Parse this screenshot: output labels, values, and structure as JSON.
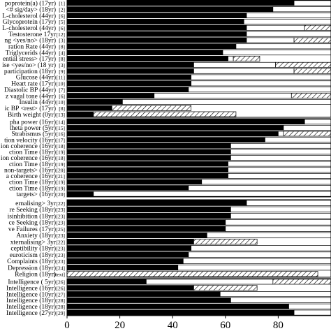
{
  "chart_data": {
    "type": "bar",
    "orientation": "horizontal",
    "stacked": true,
    "title": "",
    "xlabel": "",
    "ylabel": "",
    "xlim": [
      0,
      100
    ],
    "xticks": [
      0,
      20,
      40,
      60,
      80
    ],
    "grid": false,
    "legend": "none",
    "segment_styles": [
      "solid-black",
      "white",
      "hatched"
    ],
    "panels": [
      {
        "rows": [
          {
            "label": "poprotein(a) (17yr)",
            "num": "[1]",
            "values": [
              86,
              14,
              0
            ]
          },
          {
            "label": "<# sig/day> (18yr)",
            "num": "[2]",
            "values": [
              78,
              22,
              0
            ]
          },
          {
            "label": "L-cholesterol (44yr)",
            "num": "[6]",
            "values": [
              68,
              32,
              0
            ]
          },
          {
            "label": "Glycoprotein (17yr)",
            "num": "[5]",
            "values": [
              67,
              33,
              0
            ]
          },
          {
            "label": "L-cholesterol (44yr)",
            "num": "[6]",
            "values": [
              68,
              22,
              10
            ]
          },
          {
            "label": "Testosterone 17yr",
            "num": "[12]",
            "values": [
              68,
              32,
              0
            ]
          },
          {
            "label": "ng <yes/no> (18yr)",
            "num": "[3]",
            "values": [
              68,
              18,
              14
            ]
          },
          {
            "label": "ration Rate (44yr)",
            "num": "[8]",
            "values": [
              64,
              36,
              0
            ]
          },
          {
            "label": "Triglycerids (44yr)",
            "num": "[4]",
            "values": [
              59,
              41,
              0
            ]
          },
          {
            "label": "ential stress> (17yr)",
            "num": "[8]",
            "values": [
              61,
              2,
              10
            ]
          },
          {
            "label": "ise <yes/no> (18 yr)",
            "num": "[3]",
            "values": [
              48,
              31,
              21
            ]
          },
          {
            "label": "participation (18yr)",
            "num": "[9]",
            "values": [
              48,
              38,
              14
            ]
          },
          {
            "label": "Glucose (44yr)",
            "num": "[11]",
            "values": [
              47,
              53,
              0
            ]
          },
          {
            "label": "Heart rate (17yr)",
            "num": "[10]",
            "values": [
              47,
              53,
              0
            ]
          },
          {
            "label": "Diastolic BP (44yr)",
            "num": "[7]",
            "values": [
              46,
              54,
              0
            ]
          },
          {
            "label": "z vagal tone (44yr)",
            "num": "[6]",
            "values": [
              33,
              52,
              15
            ]
          },
          {
            "label": "Insulin (44yr)",
            "num": "[10]",
            "values": [
              21,
              79,
              0
            ]
          },
          {
            "label": "ic BP <rest> (17yr)",
            "num": "[8]",
            "values": [
              17,
              0,
              30
            ]
          },
          {
            "label": "Birth weight (0yr)",
            "num": "[13]",
            "values": [
              10,
              0,
              54
            ]
          }
        ]
      },
      {
        "rows": [
          {
            "label": "pha power (16yr)",
            "num": "[14]",
            "values": [
              90,
              10,
              0
            ]
          },
          {
            "label": "theta power (5yr)",
            "num": "[15]",
            "values": [
              82,
              18,
              0
            ]
          },
          {
            "label": "Strabismus (5yr)",
            "num": "[16]",
            "values": [
              80,
              2,
              18
            ]
          },
          {
            "label": "tion velocity (16yr)",
            "num": "[17]",
            "values": [
              75,
              25,
              0
            ]
          },
          {
            "label": "ion coherence (16yr)",
            "num": "[18]",
            "values": [
              62,
              38,
              0
            ]
          },
          {
            "label": "ction Time (18yr)",
            "num": "[19]",
            "values": [
              62,
              38,
              0
            ]
          },
          {
            "label": "ion coherence (16yr)",
            "num": "[18]",
            "values": [
              62,
              38,
              0
            ]
          },
          {
            "label": "ction Time (18yr)",
            "num": "[19]",
            "values": [
              61,
              39,
              0
            ]
          },
          {
            "label": "non-targets> (16yr)",
            "num": "[20]",
            "values": [
              61,
              39,
              0
            ]
          },
          {
            "label": "a coherence (16yr)",
            "num": "[21]",
            "values": [
              61,
              39,
              0
            ]
          },
          {
            "label": "ction Time (18yr)",
            "num": "[19]",
            "values": [
              51,
              49,
              0
            ]
          },
          {
            "label": "ction Time (18yr)",
            "num": "[19]",
            "values": [
              46,
              54,
              0
            ]
          },
          {
            "label": "targets> (16yr)",
            "num": "[20]",
            "values": [
              10,
              90,
              0
            ]
          }
        ]
      },
      {
        "rows": [
          {
            "label": "ernalising> 3yr",
            "num": "[22]",
            "values": [
              68,
              32,
              0
            ]
          },
          {
            "label": "re Seeking (18yr)",
            "num": "[23]",
            "values": [
              62,
              38,
              0
            ]
          },
          {
            "label": "isinhibition (18yr)",
            "num": "[23]",
            "values": [
              62,
              38,
              0
            ]
          },
          {
            "label": "ce Seeking (18yr)",
            "num": "[23]",
            "values": [
              60,
              40,
              0
            ]
          },
          {
            "label": "ve Failures (17yr)",
            "num": "[25]",
            "values": [
              60,
              40,
              0
            ]
          },
          {
            "label": "Anxiety (18yr)",
            "num": "[23]",
            "values": [
              53,
              47,
              0
            ]
          },
          {
            "label": "xternalising> 3yr",
            "num": "[22]",
            "values": [
              48,
              0,
              24
            ]
          },
          {
            "label": "ceptibility (18yr)",
            "num": "[23]",
            "values": [
              47,
              53,
              0
            ]
          },
          {
            "label": "euroticism (18yr)",
            "num": "[23]",
            "values": [
              46,
              54,
              0
            ]
          },
          {
            "label": "Complaints (18yr)",
            "num": "[23]",
            "values": [
              44,
              56,
              0
            ]
          },
          {
            "label": "Depression (18yr)",
            "num": "[24]",
            "values": [
              42,
              58,
              0
            ]
          },
          {
            "label": "Religion (18yr)",
            "num": "[text]",
            "values": [
              0,
              0,
              95
            ]
          }
        ]
      },
      {
        "rows": [
          {
            "label": "Intelligence ( 5yr)",
            "num": "[26]",
            "values": [
              30,
              48,
              22
            ]
          },
          {
            "label": "Intelligence (16yr)",
            "num": "[26]",
            "values": [
              48,
              0,
              24
            ]
          },
          {
            "label": "Intelligence (10yr)",
            "num": "[27]",
            "values": [
              58,
              42,
              0
            ]
          },
          {
            "label": "Intelligence (18yr)",
            "num": "[28]",
            "values": [
              62,
              38,
              0
            ]
          },
          {
            "label": "Intelligence (18yr)",
            "num": "[28]",
            "values": [
              84,
              16,
              0
            ]
          },
          {
            "label": "Intelligence (27yr)",
            "num": "[29]",
            "values": [
              86,
              14,
              0
            ]
          }
        ]
      }
    ]
  }
}
